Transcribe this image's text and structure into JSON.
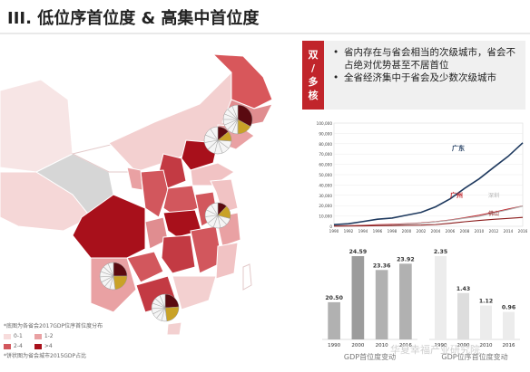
{
  "page": {
    "title": "III. 低位序首位度 & 高集中首位度"
  },
  "callout": {
    "tag": [
      "双",
      "/",
      "多",
      "核"
    ],
    "bullets": [
      "省内存在与省会相当的次级城市，省会不占绝对优势甚至不居首位",
      "全省经济集中于省会及少数次级城市"
    ]
  },
  "map": {
    "notes": [
      "*底图为各省会2017GDP位序首位度分布",
      "*饼状图为省会城市2015GDP占比"
    ],
    "legend": [
      {
        "label": "0-1",
        "color": "#f7dcdc"
      },
      {
        "label": "1-2",
        "color": "#e9a1a3"
      },
      {
        "label": "2-4",
        "color": "#d2575d"
      },
      {
        "label": ">4",
        "color": "#a8101b"
      }
    ],
    "colors": {
      "c1": "#f4d2d2",
      "c2": "#e9a1a3",
      "c3": "#d2575d",
      "c4": "#a8101b",
      "grey": "#c8c8c8"
    },
    "pies": [
      {
        "id": "liaoning",
        "shares": [
          0.33,
          0.17,
          0.5
        ],
        "colors": [
          "#5a0a10",
          "#c9a227",
          "#f5f5f5"
        ]
      },
      {
        "id": "shandong",
        "shares": [
          0.14,
          0.12,
          0.74
        ],
        "colors": [
          "#5a0a10",
          "#c9a227",
          "#f5f5f5"
        ]
      },
      {
        "id": "jiangsu",
        "shares": [
          0.12,
          0.17,
          0.71
        ],
        "colors": [
          "#5a0a10",
          "#c9a227",
          "#f5f5f5"
        ]
      },
      {
        "id": "hunan",
        "shares": [
          0.25,
          0.23,
          0.52
        ],
        "colors": [
          "#5a0a10",
          "#c9a227",
          "#f5f5f5"
        ]
      },
      {
        "id": "guangdong",
        "shares": [
          0.24,
          0.24,
          0.52
        ],
        "colors": [
          "#5a0a10",
          "#c9a227",
          "#f5f5f5"
        ]
      }
    ]
  },
  "chart_data": [
    {
      "type": "line",
      "x": [
        1990,
        1992,
        1994,
        1996,
        1998,
        2000,
        2002,
        2004,
        2006,
        2008,
        2010,
        2012,
        2014,
        2016
      ],
      "ylim": [
        0,
        100000
      ],
      "yticks": [
        "0",
        "10,000",
        "20,000",
        "30,000",
        "40,000",
        "50,000",
        "60,000",
        "70,000",
        "80,000",
        "90,000",
        "100,000"
      ],
      "series": [
        {
          "name": "广东",
          "color": "#1f3a5f",
          "values": [
            1560,
            2450,
            4620,
            6830,
            7920,
            10740,
            13500,
            18860,
            26590,
            36800,
            46010,
            57070,
            67810,
            80850
          ]
        },
        {
          "name": "广州",
          "color": "#c0242b",
          "values": [
            320,
            510,
            980,
            1450,
            1840,
            2490,
            3200,
            4450,
            6080,
            8290,
            10750,
            13550,
            16710,
            19610
          ]
        },
        {
          "name": "深圳",
          "color": "#b0b0b0",
          "values": [
            170,
            320,
            630,
            950,
            1290,
            2190,
            2970,
            4280,
            5810,
            7790,
            9580,
            12950,
            16000,
            19490
          ]
        },
        {
          "name": "佛山",
          "color": "#8a1a1a",
          "values": [
            140,
            230,
            420,
            600,
            720,
            1050,
            1170,
            1650,
            2900,
            4380,
            5650,
            6710,
            7600,
            8630
          ]
        }
      ]
    },
    {
      "type": "bar",
      "groups": [
        {
          "caption": "GDP首位度变动",
          "color": "#b1b1b1",
          "highlight": "#9c9c9c",
          "categories": [
            "1990",
            "2000",
            "2010",
            "2016"
          ],
          "values": [
            20.5,
            24.59,
            23.36,
            23.92
          ],
          "labels": [
            "20.50",
            "24.59",
            "23.36",
            "23.92"
          ]
        },
        {
          "caption": "GDP位序首位度变动",
          "color": "#ececec",
          "highlight": "#dddddd",
          "categories": [
            "1990",
            "2000",
            "2010",
            "2016"
          ],
          "values": [
            2.35,
            1.43,
            1.12,
            0.96
          ],
          "labels": [
            "2.35",
            "1.43",
            "1.12",
            "0.96"
          ]
        }
      ]
    }
  ],
  "watermark": "华夏幸福产业研究院"
}
